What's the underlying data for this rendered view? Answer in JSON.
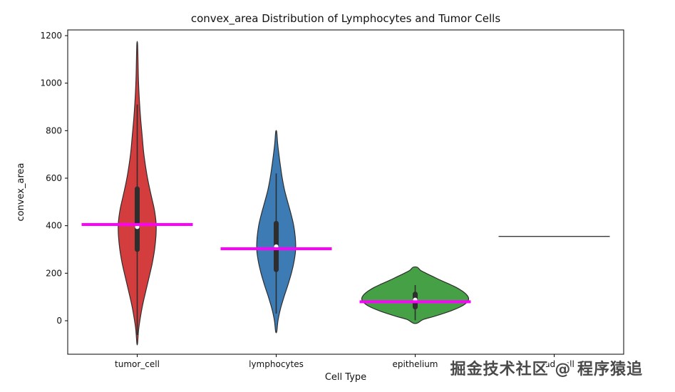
{
  "watermark": {
    "text": "掘金技术社区 @ 程序猿追",
    "color": "#4a4a4a"
  },
  "chart_data": {
    "type": "violin",
    "title": "convex_area Distribution of Lymphocytes and Tumor Cells",
    "xlabel": "Cell Type",
    "ylabel": "convex_area",
    "ylim": [
      -141,
      1224
    ],
    "yticks": [
      0,
      200,
      400,
      600,
      800,
      1000,
      1200
    ],
    "grid": false,
    "legend": "none",
    "background": "#ffffff",
    "edge_color": "#2e2e2e",
    "mean_line_color": "#ff00ff",
    "categories": [
      "tumor_cell",
      "lymphocytes",
      "epithelium",
      "dead_cell"
    ],
    "violins": [
      {
        "category": "tumor_cell",
        "color": "#d43d3d",
        "max_width": 0.34,
        "min": -95,
        "max": 1165,
        "q1": 300,
        "median": 395,
        "q3": 555,
        "whisker_low": -60,
        "whisker_high": 910,
        "mean_line": 405,
        "profile": [
          [
            -95,
            0.02
          ],
          [
            -40,
            0.07
          ],
          [
            0,
            0.14
          ],
          [
            60,
            0.27
          ],
          [
            120,
            0.44
          ],
          [
            180,
            0.62
          ],
          [
            240,
            0.79
          ],
          [
            300,
            0.92
          ],
          [
            360,
            0.995
          ],
          [
            410,
            1.0
          ],
          [
            470,
            0.9
          ],
          [
            530,
            0.73
          ],
          [
            590,
            0.57
          ],
          [
            650,
            0.44
          ],
          [
            710,
            0.34
          ],
          [
            780,
            0.26
          ],
          [
            850,
            0.18
          ],
          [
            920,
            0.12
          ],
          [
            1000,
            0.07
          ],
          [
            1080,
            0.045
          ],
          [
            1165,
            0.02
          ]
        ]
      },
      {
        "category": "lymphocytes",
        "color": "#3d7bb4",
        "max_width": 0.35,
        "min": -45,
        "max": 795,
        "q1": 215,
        "median": 312,
        "q3": 410,
        "whisker_low": 30,
        "whisker_high": 620,
        "mean_line": 303,
        "profile": [
          [
            -45,
            0.03
          ],
          [
            0,
            0.09
          ],
          [
            50,
            0.22
          ],
          [
            100,
            0.4
          ],
          [
            150,
            0.6
          ],
          [
            200,
            0.78
          ],
          [
            250,
            0.92
          ],
          [
            300,
            1.0
          ],
          [
            350,
            0.98
          ],
          [
            400,
            0.9
          ],
          [
            450,
            0.76
          ],
          [
            500,
            0.59
          ],
          [
            550,
            0.43
          ],
          [
            600,
            0.31
          ],
          [
            650,
            0.22
          ],
          [
            700,
            0.14
          ],
          [
            750,
            0.07
          ],
          [
            795,
            0.025
          ]
        ]
      },
      {
        "category": "epithelium",
        "color": "#46a046",
        "max_width": 0.96,
        "min": -10,
        "max": 225,
        "q1": 58,
        "median": 88,
        "q3": 112,
        "whisker_low": 2,
        "whisker_high": 150,
        "mean_line": 80,
        "profile": [
          [
            -10,
            0.04
          ],
          [
            5,
            0.15
          ],
          [
            20,
            0.38
          ],
          [
            40,
            0.65
          ],
          [
            60,
            0.86
          ],
          [
            80,
            0.98
          ],
          [
            95,
            1.0
          ],
          [
            110,
            0.96
          ],
          [
            125,
            0.88
          ],
          [
            140,
            0.77
          ],
          [
            155,
            0.63
          ],
          [
            170,
            0.48
          ],
          [
            185,
            0.34
          ],
          [
            200,
            0.2
          ],
          [
            212,
            0.1
          ],
          [
            225,
            0.04
          ]
        ]
      },
      {
        "category": "dead_cell",
        "color": "#8172b2",
        "max_width": 1.0,
        "flat_value": 355
      }
    ]
  }
}
